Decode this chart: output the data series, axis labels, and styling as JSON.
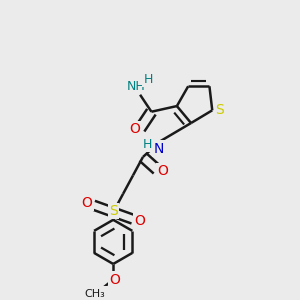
{
  "background_color": "#ebebeb",
  "bond_color": "#1a1a1a",
  "bond_width": 1.8,
  "figsize": [
    3.0,
    3.0
  ],
  "dpi": 100,
  "xlim": [
    0,
    1
  ],
  "ylim": [
    0,
    1
  ],
  "S_thiophene_color": "#cccc00",
  "N_color": "#0000cc",
  "O_color": "#dd0000",
  "NH2_color": "#008080",
  "H_color": "#008080",
  "S_sulfonyl_color": "#cccc00"
}
